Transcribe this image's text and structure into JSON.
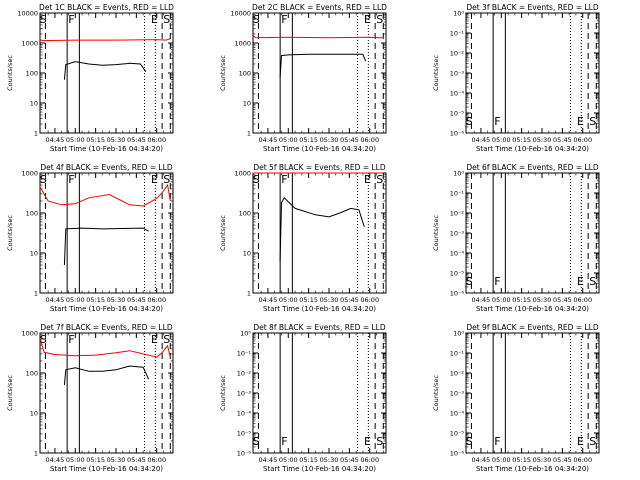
{
  "colors": {
    "events": "#000000",
    "lld": "#ff0000",
    "axes": "#000000",
    "background": "#ffffff"
  },
  "common": {
    "xlabel": "Start Time (10-Feb-16 04:34:20)",
    "ylabel": "Counts/sec",
    "x_tick_labels": [
      "04:45",
      "05:00",
      "05:15",
      "05:30",
      "05:45",
      "06:00"
    ],
    "x_range": [
      "04:34",
      "06:12"
    ],
    "log_labels": [
      "1",
      "10",
      "100",
      "1000",
      "10000"
    ],
    "empty_labels": [
      "10⁰",
      "10⁻¹",
      "10⁻²",
      "10⁻³",
      "10⁻⁴",
      "10⁻⁵",
      "10⁻⁶"
    ],
    "solid_lines": [
      "04:54",
      "05:03"
    ],
    "dotted_lines": [
      "05:51",
      "05:59"
    ],
    "dashed_lines": [
      "04:38",
      "06:04",
      "06:10"
    ],
    "markers": [
      {
        "label": "S",
        "time": "04:36"
      },
      {
        "label": "F",
        "time": "04:57"
      },
      {
        "label": "E",
        "time": "05:58"
      },
      {
        "label": "S",
        "time": "06:07"
      }
    ]
  },
  "chart_data": [
    {
      "type": "line",
      "title": "Det 1C BLACK = Events, RED = LLD",
      "yscale": "log",
      "ylim": [
        1,
        10000
      ],
      "y_ticks": [
        1,
        10,
        100,
        1000,
        10000
      ],
      "series": [
        {
          "name": "Events",
          "color": "#000000",
          "x": [
            "04:52",
            "04:53",
            "05:00",
            "05:10",
            "05:20",
            "05:30",
            "05:40",
            "05:48",
            "05:52"
          ],
          "y": [
            60,
            190,
            240,
            200,
            180,
            190,
            210,
            200,
            110
          ]
        },
        {
          "name": "LLD",
          "color": "#ff0000",
          "x": [
            "04:34",
            "04:36",
            "05:00",
            "05:30",
            "06:00",
            "06:07",
            "06:10"
          ],
          "y": [
            1300,
            1200,
            1250,
            1250,
            1300,
            1250,
            1400
          ]
        }
      ]
    },
    {
      "type": "line",
      "title": "Det 2C BLACK = Events, RED = LLD",
      "yscale": "log",
      "ylim": [
        1,
        10000
      ],
      "y_ticks": [
        1,
        10,
        100,
        1000,
        10000
      ],
      "series": [
        {
          "name": "Events",
          "color": "#000000",
          "x": [
            "04:54",
            "04:55",
            "05:00",
            "05:15",
            "05:30",
            "05:45",
            "05:55",
            "05:57"
          ],
          "y": [
            70,
            380,
            400,
            420,
            420,
            420,
            420,
            250
          ]
        },
        {
          "name": "LLD",
          "color": "#ff0000",
          "x": [
            "04:34",
            "04:36",
            "05:00",
            "05:30",
            "06:00",
            "06:07",
            "06:10"
          ],
          "y": [
            1800,
            1500,
            1550,
            1500,
            1550,
            1500,
            1500
          ]
        }
      ]
    },
    {
      "type": "line",
      "title": "Det 3f BLACK = Events, RED = LLD",
      "yscale": "log",
      "y_tick_exponents": [
        0,
        -1,
        -2,
        -3,
        -4,
        -5,
        -6
      ],
      "series": []
    },
    {
      "type": "line",
      "title": "Det 4f BLACK = Events, RED = LLD",
      "yscale": "log",
      "ylim": [
        1,
        1000
      ],
      "y_ticks": [
        1,
        10,
        100,
        1000
      ],
      "series": [
        {
          "name": "Events",
          "color": "#000000",
          "x": [
            "04:52",
            "04:53",
            "05:05",
            "05:20",
            "05:35",
            "05:50",
            "05:54"
          ],
          "y": [
            5,
            40,
            42,
            40,
            41,
            42,
            35
          ]
        },
        {
          "name": "LLD",
          "color": "#ff0000",
          "x": [
            "04:34",
            "04:40",
            "04:50",
            "05:00",
            "05:10",
            "05:25",
            "05:40",
            "05:50",
            "06:00",
            "06:04",
            "06:08",
            "06:10"
          ],
          "y": [
            450,
            200,
            160,
            170,
            240,
            290,
            160,
            150,
            230,
            320,
            500,
            200
          ]
        }
      ]
    },
    {
      "type": "line",
      "title": "Det 5f BLACK = Events, RED = LLD",
      "yscale": "log",
      "ylim": [
        1,
        1000
      ],
      "y_ticks": [
        1,
        10,
        100,
        1000
      ],
      "series": [
        {
          "name": "Events",
          "color": "#000000",
          "x": [
            "04:54",
            "04:55",
            "04:57",
            "05:05",
            "05:20",
            "05:30",
            "05:38",
            "05:46",
            "05:52",
            "05:56"
          ],
          "y": [
            6,
            180,
            240,
            130,
            90,
            80,
            100,
            130,
            120,
            45
          ]
        },
        {
          "name": "LLD",
          "color": "#ff0000",
          "x": [
            "04:34",
            "05:00",
            "05:30",
            "06:10"
          ],
          "y": [
            1000,
            1000,
            1000,
            1000
          ]
        }
      ]
    },
    {
      "type": "line",
      "title": "Det 6f BLACK = Events, RED = LLD",
      "yscale": "log",
      "y_tick_exponents": [
        0,
        -1,
        -2,
        -3,
        -4,
        -5,
        -6
      ],
      "series": []
    },
    {
      "type": "line",
      "title": "Det 7f BLACK = Events, RED = LLD",
      "yscale": "log",
      "ylim": [
        1,
        1000
      ],
      "y_ticks": [
        1,
        10,
        100,
        1000
      ],
      "series": [
        {
          "name": "Events",
          "color": "#000000",
          "x": [
            "04:52",
            "04:53",
            "05:00",
            "05:10",
            "05:20",
            "05:30",
            "05:40",
            "05:50",
            "05:54"
          ],
          "y": [
            50,
            120,
            135,
            110,
            110,
            120,
            150,
            140,
            70
          ]
        },
        {
          "name": "LLD",
          "color": "#ff0000",
          "x": [
            "04:34",
            "04:37",
            "04:45",
            "05:00",
            "05:15",
            "05:30",
            "05:40",
            "05:50",
            "06:00",
            "06:04",
            "06:08",
            "06:10"
          ],
          "y": [
            750,
            330,
            290,
            270,
            280,
            320,
            360,
            300,
            250,
            320,
            480,
            250
          ]
        }
      ]
    },
    {
      "type": "line",
      "title": "Det 8f BLACK = Events, RED = LLD",
      "yscale": "log",
      "y_tick_exponents": [
        0,
        -1,
        -2,
        -3,
        -4,
        -5,
        -6
      ],
      "series": []
    },
    {
      "type": "line",
      "title": "Det 9f BLACK = Events, RED = LLD",
      "yscale": "log",
      "y_tick_exponents": [
        0,
        -1,
        -2,
        -3,
        -4,
        -5,
        -6
      ],
      "series": []
    }
  ]
}
